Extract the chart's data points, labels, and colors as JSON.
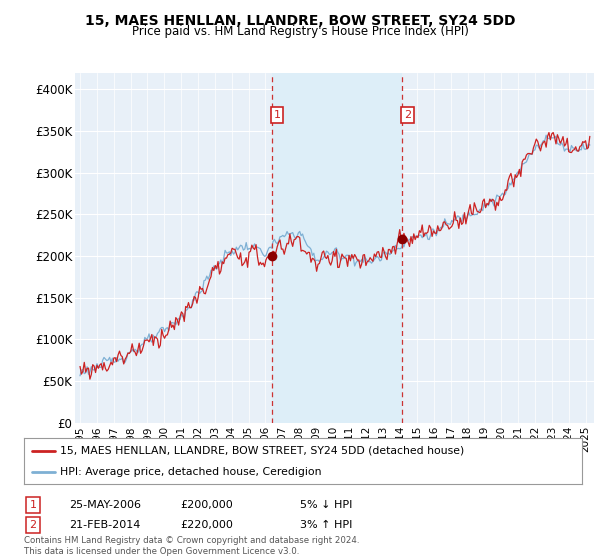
{
  "title": "15, MAES HENLLAN, LLANDRE, BOW STREET, SY24 5DD",
  "subtitle": "Price paid vs. HM Land Registry's House Price Index (HPI)",
  "ylabel_ticks": [
    "£0",
    "£50K",
    "£100K",
    "£150K",
    "£200K",
    "£250K",
    "£300K",
    "£350K",
    "£400K"
  ],
  "ytick_values": [
    0,
    50000,
    100000,
    150000,
    200000,
    250000,
    300000,
    350000,
    400000
  ],
  "ylim": [
    0,
    420000
  ],
  "xlim_start": 1994.7,
  "xlim_end": 2025.5,
  "hpi_color": "#7eb0d4",
  "property_color": "#cc2222",
  "shaded_color": "#ddeef8",
  "background_color": "#e8f0f8",
  "plot_bg_color": "#e8f0f8",
  "grid_color": "#ffffff",
  "sale1_x": 2006.38,
  "sale1_y": 200000,
  "sale1_label": "1",
  "sale1_date": "25-MAY-2006",
  "sale1_price": "£200,000",
  "sale1_hpi": "5% ↓ HPI",
  "sale2_x": 2014.12,
  "sale2_y": 220000,
  "sale2_label": "2",
  "sale2_date": "21-FEB-2014",
  "sale2_price": "£220,000",
  "sale2_hpi": "3% ↑ HPI",
  "legend_line1": "15, MAES HENLLAN, LLANDRE, BOW STREET, SY24 5DD (detached house)",
  "legend_line2": "HPI: Average price, detached house, Ceredigion",
  "footer": "Contains HM Land Registry data © Crown copyright and database right 2024.\nThis data is licensed under the Open Government Licence v3.0.",
  "xtick_years": [
    1995,
    1996,
    1997,
    1998,
    1999,
    2000,
    2001,
    2002,
    2003,
    2004,
    2005,
    2006,
    2007,
    2008,
    2009,
    2010,
    2011,
    2012,
    2013,
    2014,
    2015,
    2016,
    2017,
    2018,
    2019,
    2020,
    2021,
    2022,
    2023,
    2024,
    2025
  ]
}
